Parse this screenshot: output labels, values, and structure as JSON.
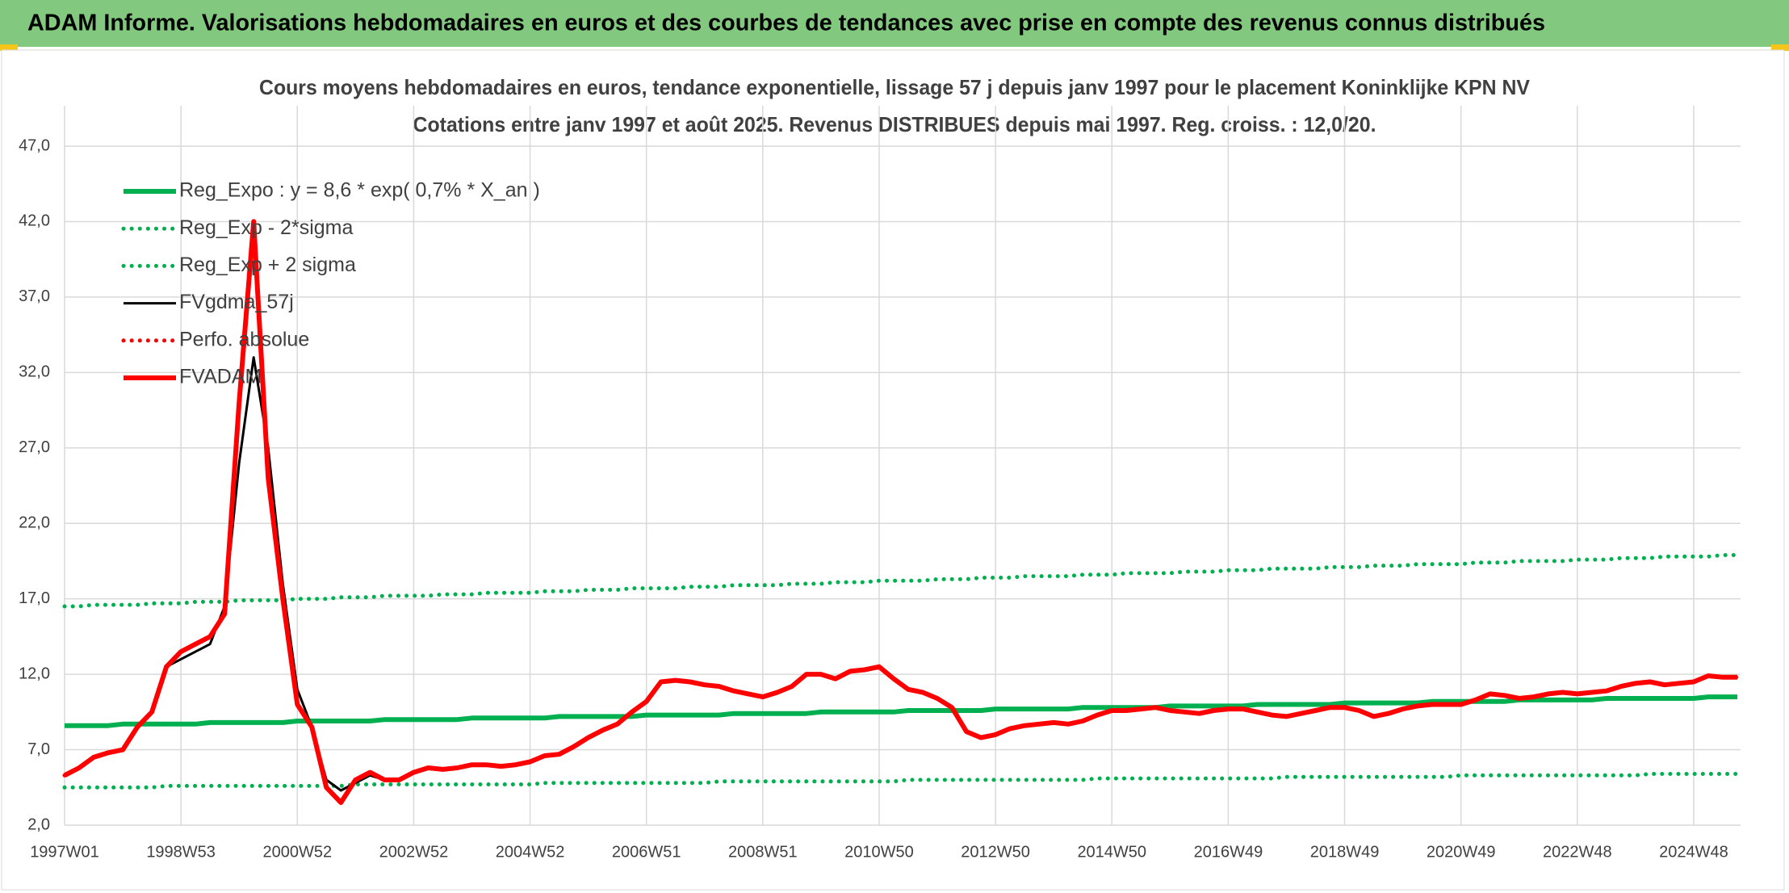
{
  "header": {
    "title": "ADAM Informe. Valorisations hebdomadaires en euros et des courbes de tendances avec prise en compte des revenus connus distribués"
  },
  "chart_data": {
    "type": "line",
    "title": "Cours moyens hebdomadaires en euros, tendance exponentielle, lissage 57 j depuis janv 1997 pour le placement Koninklijke KPN NV",
    "subtitle": "Cotations entre janv 1997 et août 2025. Revenus DISTRIBUES depuis mai 1997. Reg. croiss. : 12,0/20.",
    "ylim": [
      2,
      47
    ],
    "yticks": [
      {
        "value": 2,
        "label": "2,0"
      },
      {
        "value": 7,
        "label": "7,0"
      },
      {
        "value": 12,
        "label": "12,0"
      },
      {
        "value": 17,
        "label": "17,0"
      },
      {
        "value": 22,
        "label": "22,0"
      },
      {
        "value": 27,
        "label": "27,0"
      },
      {
        "value": 32,
        "label": "32,0"
      },
      {
        "value": 37,
        "label": "37,0"
      },
      {
        "value": 42,
        "label": "42,0"
      },
      {
        "value": 47,
        "label": "47,0"
      }
    ],
    "grid": true,
    "legend": "top-left",
    "categories": [
      "1997W01",
      null,
      null,
      null,
      null,
      null,
      null,
      null,
      "1998W53",
      null,
      null,
      null,
      null,
      null,
      null,
      null,
      "2000W52",
      null,
      null,
      null,
      null,
      null,
      null,
      null,
      "2002W52",
      null,
      null,
      null,
      null,
      null,
      null,
      null,
      "2004W52",
      null,
      null,
      null,
      null,
      null,
      null,
      null,
      "2006W51",
      null,
      null,
      null,
      null,
      null,
      null,
      null,
      "2008W51",
      null,
      null,
      null,
      null,
      null,
      null,
      null,
      "2010W50",
      null,
      null,
      null,
      null,
      null,
      null,
      null,
      "2012W50",
      null,
      null,
      null,
      null,
      null,
      null,
      null,
      "2014W50",
      null,
      null,
      null,
      null,
      null,
      null,
      null,
      "2016W49",
      null,
      null,
      null,
      null,
      null,
      null,
      null,
      "2018W49",
      null,
      null,
      null,
      null,
      null,
      null,
      null,
      "2020W49",
      null,
      null,
      null,
      null,
      null,
      null,
      null,
      "2022W48",
      null,
      null,
      null,
      null,
      null,
      null,
      null,
      "2024W48",
      null,
      null,
      null
    ],
    "series": [
      {
        "name": "Reg_Expo : y = 8,6 * exp( 0,7% *  X_an )",
        "color": "#00b050",
        "dash": "solid",
        "values": [
          8.6,
          8.6,
          8.6,
          8.6,
          8.7,
          8.7,
          8.7,
          8.7,
          8.7,
          8.7,
          8.8,
          8.8,
          8.8,
          8.8,
          8.8,
          8.8,
          8.9,
          8.9,
          8.9,
          8.9,
          8.9,
          8.9,
          9.0,
          9.0,
          9.0,
          9.0,
          9.0,
          9.0,
          9.1,
          9.1,
          9.1,
          9.1,
          9.1,
          9.1,
          9.2,
          9.2,
          9.2,
          9.2,
          9.2,
          9.2,
          9.3,
          9.3,
          9.3,
          9.3,
          9.3,
          9.3,
          9.4,
          9.4,
          9.4,
          9.4,
          9.4,
          9.4,
          9.5,
          9.5,
          9.5,
          9.5,
          9.5,
          9.5,
          9.6,
          9.6,
          9.6,
          9.6,
          9.6,
          9.6,
          9.7,
          9.7,
          9.7,
          9.7,
          9.7,
          9.7,
          9.8,
          9.8,
          9.8,
          9.8,
          9.8,
          9.8,
          9.9,
          9.9,
          9.9,
          9.9,
          9.9,
          9.9,
          10.0,
          10.0,
          10.0,
          10.0,
          10.0,
          10.0,
          10.1,
          10.1,
          10.1,
          10.1,
          10.1,
          10.1,
          10.2,
          10.2,
          10.2,
          10.2,
          10.2,
          10.2,
          10.3,
          10.3,
          10.3,
          10.3,
          10.3,
          10.3,
          10.4,
          10.4,
          10.4,
          10.4,
          10.4,
          10.4,
          10.4,
          10.5,
          10.5,
          10.5
        ]
      },
      {
        "name": "Reg_Exp - 2*sigma",
        "color": "#00b050",
        "dash": "dotted",
        "values": [
          4.5,
          4.5,
          4.5,
          4.5,
          4.5,
          4.5,
          4.5,
          4.6,
          4.6,
          4.6,
          4.6,
          4.6,
          4.6,
          4.6,
          4.6,
          4.6,
          4.6,
          4.6,
          4.6,
          4.6,
          4.7,
          4.7,
          4.7,
          4.7,
          4.7,
          4.7,
          4.7,
          4.7,
          4.7,
          4.7,
          4.7,
          4.7,
          4.7,
          4.8,
          4.8,
          4.8,
          4.8,
          4.8,
          4.8,
          4.8,
          4.8,
          4.8,
          4.8,
          4.8,
          4.8,
          4.9,
          4.9,
          4.9,
          4.9,
          4.9,
          4.9,
          4.9,
          4.9,
          4.9,
          4.9,
          4.9,
          4.9,
          4.9,
          5.0,
          5.0,
          5.0,
          5.0,
          5.0,
          5.0,
          5.0,
          5.0,
          5.0,
          5.0,
          5.0,
          5.0,
          5.0,
          5.1,
          5.1,
          5.1,
          5.1,
          5.1,
          5.1,
          5.1,
          5.1,
          5.1,
          5.1,
          5.1,
          5.1,
          5.1,
          5.2,
          5.2,
          5.2,
          5.2,
          5.2,
          5.2,
          5.2,
          5.2,
          5.2,
          5.2,
          5.2,
          5.2,
          5.3,
          5.3,
          5.3,
          5.3,
          5.3,
          5.3,
          5.3,
          5.3,
          5.3,
          5.3,
          5.3,
          5.3,
          5.3,
          5.4,
          5.4,
          5.4,
          5.4,
          5.4,
          5.4,
          5.4
        ]
      },
      {
        "name": "Reg_Exp + 2 sigma",
        "color": "#00b050",
        "dash": "dotted",
        "values": [
          16.5,
          16.5,
          16.6,
          16.6,
          16.6,
          16.6,
          16.7,
          16.7,
          16.7,
          16.8,
          16.8,
          16.8,
          16.9,
          16.9,
          16.9,
          16.9,
          17.0,
          17.0,
          17.0,
          17.1,
          17.1,
          17.1,
          17.2,
          17.2,
          17.2,
          17.2,
          17.3,
          17.3,
          17.3,
          17.4,
          17.4,
          17.4,
          17.4,
          17.5,
          17.5,
          17.5,
          17.6,
          17.6,
          17.6,
          17.7,
          17.7,
          17.7,
          17.7,
          17.8,
          17.8,
          17.8,
          17.9,
          17.9,
          17.9,
          17.9,
          18.0,
          18.0,
          18.0,
          18.1,
          18.1,
          18.1,
          18.2,
          18.2,
          18.2,
          18.2,
          18.3,
          18.3,
          18.3,
          18.4,
          18.4,
          18.4,
          18.5,
          18.5,
          18.5,
          18.5,
          18.6,
          18.6,
          18.6,
          18.7,
          18.7,
          18.7,
          18.7,
          18.8,
          18.8,
          18.8,
          18.9,
          18.9,
          18.9,
          19.0,
          19.0,
          19.0,
          19.0,
          19.1,
          19.1,
          19.1,
          19.2,
          19.2,
          19.2,
          19.3,
          19.3,
          19.3,
          19.3,
          19.4,
          19.4,
          19.4,
          19.5,
          19.5,
          19.5,
          19.5,
          19.6,
          19.6,
          19.6,
          19.7,
          19.7,
          19.7,
          19.8,
          19.8,
          19.8,
          19.8,
          19.9,
          19.9
        ]
      },
      {
        "name": "FVgdma_57j",
        "color": "#000000",
        "dash": "solid",
        "values": [
          5.3,
          5.8,
          6.5,
          6.8,
          7.0,
          8.5,
          9.5,
          12.5,
          13.0,
          13.5,
          14.0,
          16.5,
          26.0,
          33.0,
          27.0,
          18.0,
          11.0,
          8.5,
          5.0,
          4.3,
          4.8,
          5.3,
          5.0,
          5.0,
          5.5,
          5.8,
          5.7,
          5.8,
          6.0,
          6.0,
          5.9,
          6.0,
          6.2,
          6.6,
          6.7,
          7.2,
          7.8,
          8.3,
          8.7,
          9.5,
          10.2,
          11.5,
          11.6,
          11.5,
          11.3,
          11.2,
          10.9,
          10.7,
          10.5,
          10.8,
          11.2,
          12.0,
          12.0,
          11.7,
          12.2,
          12.3,
          12.5,
          11.7,
          11.0,
          10.8,
          10.4,
          9.8,
          8.2,
          7.8,
          8.0,
          8.4,
          8.6,
          8.7,
          8.8,
          8.7,
          8.9,
          9.3,
          9.6,
          9.6,
          9.7,
          9.8,
          9.6,
          9.5,
          9.4,
          9.6,
          9.7,
          9.7,
          9.5,
          9.3,
          9.2,
          9.4,
          9.6,
          9.8,
          9.8,
          9.6,
          9.2,
          9.4,
          9.7,
          9.9,
          10.0,
          10.0,
          10.0,
          10.3,
          10.7,
          10.6,
          10.4,
          10.5,
          10.7,
          10.8,
          10.7,
          10.8,
          10.9,
          11.2,
          11.4,
          11.5,
          11.3,
          11.4,
          11.5,
          11.9,
          11.8,
          11.8
        ]
      },
      {
        "name": "Perfo. absolue",
        "color": "#ff0000",
        "dash": "dotted",
        "values": [
          5.3,
          5.8,
          6.5,
          6.8,
          7.0,
          8.5,
          9.5,
          12.5,
          13.5,
          14.0,
          14.5,
          16.0,
          30.0,
          42.0,
          25.0,
          17.0,
          10.0,
          8.5,
          4.5,
          3.5,
          5.0,
          5.5,
          5.0,
          5.0,
          5.5,
          5.8,
          5.7,
          5.8,
          6.0,
          6.0,
          5.9,
          6.0,
          6.2,
          6.6,
          6.7,
          7.2,
          7.8,
          8.3,
          8.7,
          9.5,
          10.2,
          11.5,
          11.6,
          11.5,
          11.3,
          11.2,
          10.9,
          10.7,
          10.5,
          10.8,
          11.2,
          12.0,
          12.0,
          11.7,
          12.2,
          12.3,
          12.5,
          11.7,
          11.0,
          10.8,
          10.4,
          9.8,
          8.2,
          7.8,
          8.0,
          8.4,
          8.6,
          8.7,
          8.8,
          8.7,
          8.9,
          9.3,
          9.6,
          9.6,
          9.7,
          9.8,
          9.6,
          9.5,
          9.4,
          9.6,
          9.7,
          9.7,
          9.5,
          9.3,
          9.2,
          9.4,
          9.6,
          9.8,
          9.8,
          9.6,
          9.2,
          9.4,
          9.7,
          9.9,
          10.0,
          10.0,
          10.0,
          10.3,
          10.7,
          10.6,
          10.4,
          10.5,
          10.7,
          10.8,
          10.7,
          10.8,
          10.9,
          11.2,
          11.4,
          11.5,
          11.3,
          11.4,
          11.5,
          11.9,
          11.8,
          11.8
        ]
      },
      {
        "name": "FVADAM",
        "color": "#ff0000",
        "dash": "solid",
        "values": [
          5.3,
          5.8,
          6.5,
          6.8,
          7.0,
          8.5,
          9.5,
          12.5,
          13.5,
          14.0,
          14.5,
          16.0,
          30.0,
          42.0,
          25.0,
          17.0,
          10.0,
          8.5,
          4.5,
          3.5,
          5.0,
          5.5,
          5.0,
          5.0,
          5.5,
          5.8,
          5.7,
          5.8,
          6.0,
          6.0,
          5.9,
          6.0,
          6.2,
          6.6,
          6.7,
          7.2,
          7.8,
          8.3,
          8.7,
          9.5,
          10.2,
          11.5,
          11.6,
          11.5,
          11.3,
          11.2,
          10.9,
          10.7,
          10.5,
          10.8,
          11.2,
          12.0,
          12.0,
          11.7,
          12.2,
          12.3,
          12.5,
          11.7,
          11.0,
          10.8,
          10.4,
          9.8,
          8.2,
          7.8,
          8.0,
          8.4,
          8.6,
          8.7,
          8.8,
          8.7,
          8.9,
          9.3,
          9.6,
          9.6,
          9.7,
          9.8,
          9.6,
          9.5,
          9.4,
          9.6,
          9.7,
          9.7,
          9.5,
          9.3,
          9.2,
          9.4,
          9.6,
          9.8,
          9.8,
          9.6,
          9.2,
          9.4,
          9.7,
          9.9,
          10.0,
          10.0,
          10.0,
          10.3,
          10.7,
          10.6,
          10.4,
          10.5,
          10.7,
          10.8,
          10.7,
          10.8,
          10.9,
          11.2,
          11.4,
          11.5,
          11.3,
          11.4,
          11.5,
          11.9,
          11.8,
          11.8
        ]
      }
    ]
  }
}
